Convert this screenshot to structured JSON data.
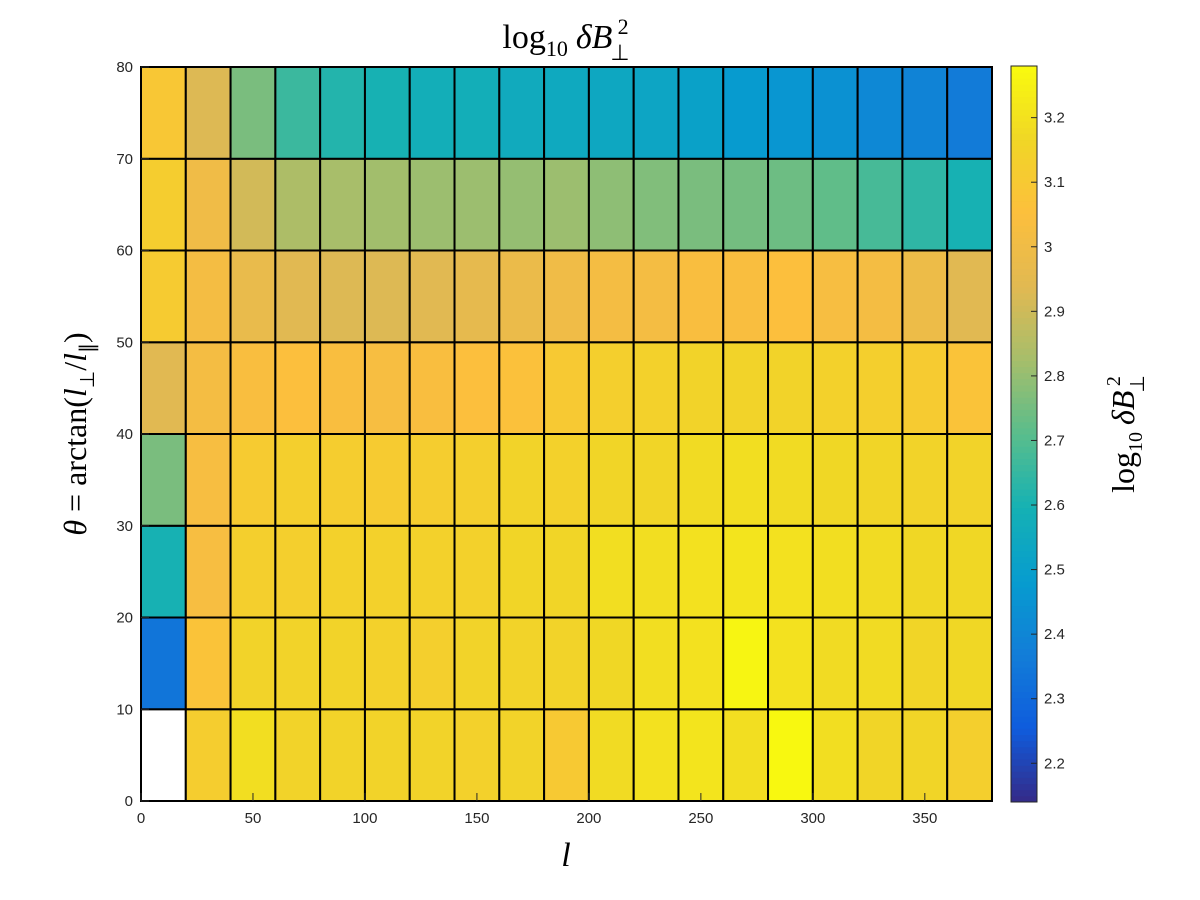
{
  "chart_data": {
    "type": "heatmap",
    "title": "log10 δB⊥²",
    "xlabel": "l",
    "ylabel": "θ = arctan(l⊥/l∥)",
    "colorbar_label": "log10 δB⊥²",
    "x_edges": [
      0,
      20,
      40,
      60,
      80,
      100,
      120,
      140,
      160,
      180,
      200,
      220,
      240,
      260,
      280,
      300,
      320,
      340,
      360,
      380
    ],
    "y_edges": [
      0,
      10,
      20,
      30,
      40,
      50,
      60,
      70,
      80
    ],
    "xlim": [
      0,
      380
    ],
    "ylim": [
      0,
      80
    ],
    "x_ticks": [
      0,
      50,
      100,
      150,
      200,
      250,
      300,
      350
    ],
    "y_ticks": [
      0,
      10,
      20,
      30,
      40,
      50,
      60,
      70,
      80
    ],
    "clim": [
      2.14,
      3.28
    ],
    "colorbar_ticks": [
      2.2,
      2.3,
      2.4,
      2.5,
      2.6,
      2.7,
      2.8,
      2.9,
      3,
      3.1,
      3.2
    ],
    "colormap": "parula",
    "grid_line_color": "#000000",
    "missing_cell_color": "#ffffff",
    "z": [
      [
        null,
        3.12,
        3.19,
        3.15,
        3.15,
        3.15,
        3.15,
        3.14,
        3.15,
        3.1,
        3.18,
        3.2,
        3.21,
        3.19,
        3.27,
        3.19,
        3.16,
        3.16,
        3.13
      ],
      [
        2.34,
        3.07,
        3.15,
        3.15,
        3.15,
        3.14,
        3.13,
        3.15,
        3.15,
        3.15,
        3.17,
        3.19,
        3.2,
        3.26,
        3.2,
        3.18,
        3.18,
        3.16,
        3.17
      ],
      [
        2.6,
        3.03,
        3.13,
        3.13,
        3.14,
        3.14,
        3.14,
        3.14,
        3.16,
        3.16,
        3.19,
        3.19,
        3.2,
        3.21,
        3.2,
        3.19,
        3.18,
        3.17,
        3.17
      ],
      [
        2.76,
        3.03,
        3.11,
        3.13,
        3.12,
        3.11,
        3.12,
        3.13,
        3.15,
        3.14,
        3.16,
        3.16,
        3.18,
        3.19,
        3.18,
        3.17,
        3.16,
        3.15,
        3.15
      ],
      [
        2.94,
        3.02,
        3.04,
        3.05,
        3.04,
        3.03,
        3.04,
        3.05,
        3.06,
        3.1,
        3.13,
        3.14,
        3.15,
        3.15,
        3.15,
        3.14,
        3.13,
        3.11,
        3.07
      ],
      [
        3.11,
        3.02,
        2.97,
        2.94,
        2.93,
        2.93,
        2.94,
        2.96,
        2.98,
        3.0,
        3.02,
        3.02,
        3.04,
        3.04,
        3.05,
        3.03,
        3.02,
        2.99,
        2.94
      ],
      [
        3.12,
        3.0,
        2.91,
        2.84,
        2.83,
        2.82,
        2.81,
        2.81,
        2.8,
        2.81,
        2.79,
        2.77,
        2.76,
        2.75,
        2.74,
        2.72,
        2.68,
        2.64,
        2.6
      ],
      [
        3.09,
        2.93,
        2.76,
        2.66,
        2.62,
        2.6,
        2.58,
        2.58,
        2.56,
        2.55,
        2.54,
        2.53,
        2.51,
        2.48,
        2.46,
        2.44,
        2.41,
        2.39,
        2.36
      ]
    ]
  }
}
